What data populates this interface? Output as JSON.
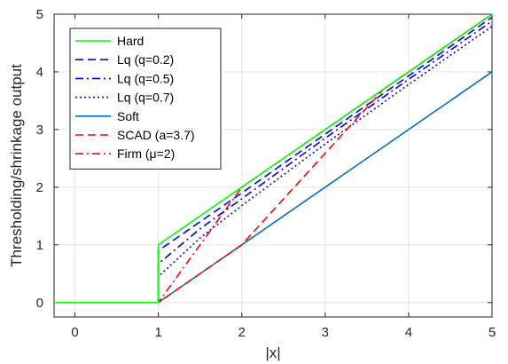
{
  "chart_data": {
    "type": "line",
    "xlabel": "|x|",
    "ylabel": "Thresholding/shrinkage output",
    "xlim": [
      -0.25,
      5
    ],
    "ylim": [
      -0.25,
      5
    ],
    "xticks": [
      0,
      1,
      2,
      3,
      4,
      5
    ],
    "yticks": [
      0,
      1,
      2,
      3,
      4,
      5
    ],
    "grid": true,
    "legend_position": "top-left",
    "series": [
      {
        "name": "Hard",
        "color": "#00ff00",
        "dash": "solid",
        "points": [
          [
            -0.25,
            0
          ],
          [
            1,
            0
          ],
          [
            1,
            1
          ],
          [
            5,
            5
          ]
        ]
      },
      {
        "name": "Lq (q=0.2)",
        "color": "#0000ff",
        "dash": "dashed",
        "points": [
          [
            -0.25,
            0
          ],
          [
            1,
            0
          ],
          [
            1,
            0.9
          ],
          [
            1.5,
            1.4
          ],
          [
            2,
            1.9
          ],
          [
            3,
            2.92
          ],
          [
            4,
            3.93
          ],
          [
            5,
            4.95
          ]
        ]
      },
      {
        "name": "Lq (q=0.5)",
        "color": "#0000cc",
        "dash": "dashdot",
        "points": [
          [
            -0.25,
            0
          ],
          [
            1,
            0
          ],
          [
            1,
            0.67
          ],
          [
            1.5,
            1.28
          ],
          [
            2,
            1.8
          ],
          [
            3,
            2.85
          ],
          [
            4,
            3.87
          ],
          [
            5,
            4.88
          ]
        ]
      },
      {
        "name": "Lq (q=0.7)",
        "color": "#0000ff",
        "dash": "dotted",
        "points": [
          [
            -0.25,
            0
          ],
          [
            1,
            0
          ],
          [
            1,
            0.45
          ],
          [
            1.5,
            1.12
          ],
          [
            2,
            1.68
          ],
          [
            3,
            2.75
          ],
          [
            4,
            3.78
          ],
          [
            5,
            4.79
          ]
        ]
      },
      {
        "name": "Soft",
        "color": "#0072bd",
        "dash": "solid",
        "points": [
          [
            -0.25,
            0
          ],
          [
            1,
            0
          ],
          [
            5,
            4
          ]
        ]
      },
      {
        "name": "SCAD (a=3.7)",
        "color": "#ff0000",
        "dash": "dashed",
        "points": [
          [
            -0.25,
            0
          ],
          [
            1,
            0
          ],
          [
            2,
            1
          ],
          [
            3.7,
            3.7
          ],
          [
            5,
            5
          ]
        ]
      },
      {
        "name": "Firm (μ=2)",
        "color": "#ff0000",
        "dash": "dashdot",
        "points": [
          [
            -0.25,
            0
          ],
          [
            1,
            0
          ],
          [
            2,
            2
          ],
          [
            5,
            5
          ]
        ]
      }
    ]
  }
}
